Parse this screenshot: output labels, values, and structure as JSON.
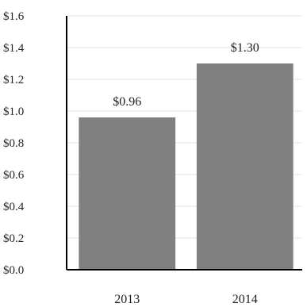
{
  "chart_data": {
    "type": "bar",
    "title": "",
    "xlabel": "",
    "ylabel": "",
    "categories": [
      "2013",
      "2014"
    ],
    "values": [
      0.96,
      1.3
    ],
    "data_labels": [
      "$0.96",
      "$1.30"
    ],
    "ylim": [
      0,
      1.6
    ],
    "yticks": [
      0,
      0.2,
      0.4,
      0.6,
      0.8,
      1.0,
      1.2,
      1.4,
      1.6
    ],
    "ytick_labels": [
      "$0.0",
      "$0.2",
      "$0.4",
      "$0.6",
      "$0.8",
      "$1.0",
      "$1.2",
      "$1.4",
      "$1.6"
    ],
    "grid": true,
    "legend": "none",
    "bar_color": "#808080",
    "grid_color": "#e6e6e6",
    "axis_color": "#000000"
  }
}
